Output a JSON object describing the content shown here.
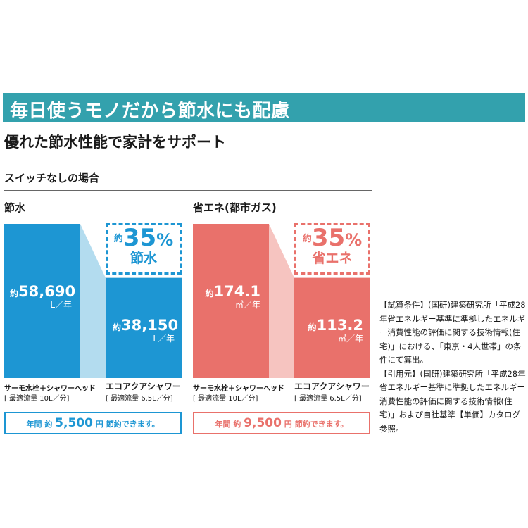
{
  "banner": {
    "title": "毎日使うモノだから節水にも配慮"
  },
  "subtitle": "優れた節水性能で家計をサポート",
  "section_label": "スイッチなしの場合",
  "colors": {
    "banner": "#33a1ad",
    "water_bar": "#1d96d3",
    "water_connector": "#b3dcef",
    "energy_bar": "#e9716b",
    "energy_connector": "#f6c4c0"
  },
  "charts": [
    {
      "title": "節水",
      "before": {
        "prefix": "約",
        "value_text": "58,690",
        "unit": "L／年"
      },
      "after": {
        "prefix": "約",
        "value_text": "38,150",
        "unit": "L／年"
      },
      "reduction": {
        "prefix": "約",
        "percent": "35",
        "sign": "%",
        "caption": "節水"
      },
      "categories": [
        {
          "name": "サーモ水栓＋シャワーヘッド",
          "flow": "[ 最適流量 10L／分]"
        },
        {
          "name": "エコアクアシャワー",
          "flow": "[ 最適流量 6.5L／分]"
        }
      ],
      "savings": {
        "lead": "年間 約 ",
        "amount": "5,500",
        "unit": "円",
        "tail": " 節約できます。"
      }
    },
    {
      "title": "省エネ(都市ガス)",
      "before": {
        "prefix": "約",
        "value_text": "174.1",
        "unit": "㎥／年"
      },
      "after": {
        "prefix": "約",
        "value_text": "113.2",
        "unit": "㎥／年"
      },
      "reduction": {
        "prefix": "約",
        "percent": "35",
        "sign": "%",
        "caption": "省エネ"
      },
      "categories": [
        {
          "name": "サーモ水栓＋シャワーヘッド",
          "flow": "[ 最適流量 10L／分]"
        },
        {
          "name": "エコアクアシャワー",
          "flow": "[ 最適流量 6.5L／分]"
        }
      ],
      "savings": {
        "lead": "年間 約 ",
        "amount": "9,500",
        "unit": "円",
        "tail": " 節約できます。"
      }
    }
  ],
  "chart_data": [
    {
      "type": "bar",
      "title": "節水",
      "categories": [
        "サーモ水栓＋シャワーヘッド",
        "エコアクアシャワー"
      ],
      "values": [
        58690,
        38150
      ],
      "ylabel": "L／年",
      "ylim": [
        0,
        58690
      ],
      "grid": false
    },
    {
      "type": "bar",
      "title": "省エネ(都市ガス)",
      "categories": [
        "サーモ水栓＋シャワーヘッド",
        "エコアクアシャワー"
      ],
      "values": [
        174.1,
        113.2
      ],
      "ylabel": "㎥／年",
      "ylim": [
        0,
        174.1
      ],
      "grid": false
    }
  ],
  "notes": [
    "【試算条件】(国研)建築研究所「平成28年省エネルギー基準に準拠したエネルギー消費性能の評価に関する技術情報(住宅)」における、「東京・4人世帯」の条件にて算出。",
    "【引用元】(国研)建築研究所「平成28年省エネルギー基準に準拠したエネルギー消費性能の評価に関する技術情報(住宅)」および自社基準【単価】カタログ参照。"
  ]
}
